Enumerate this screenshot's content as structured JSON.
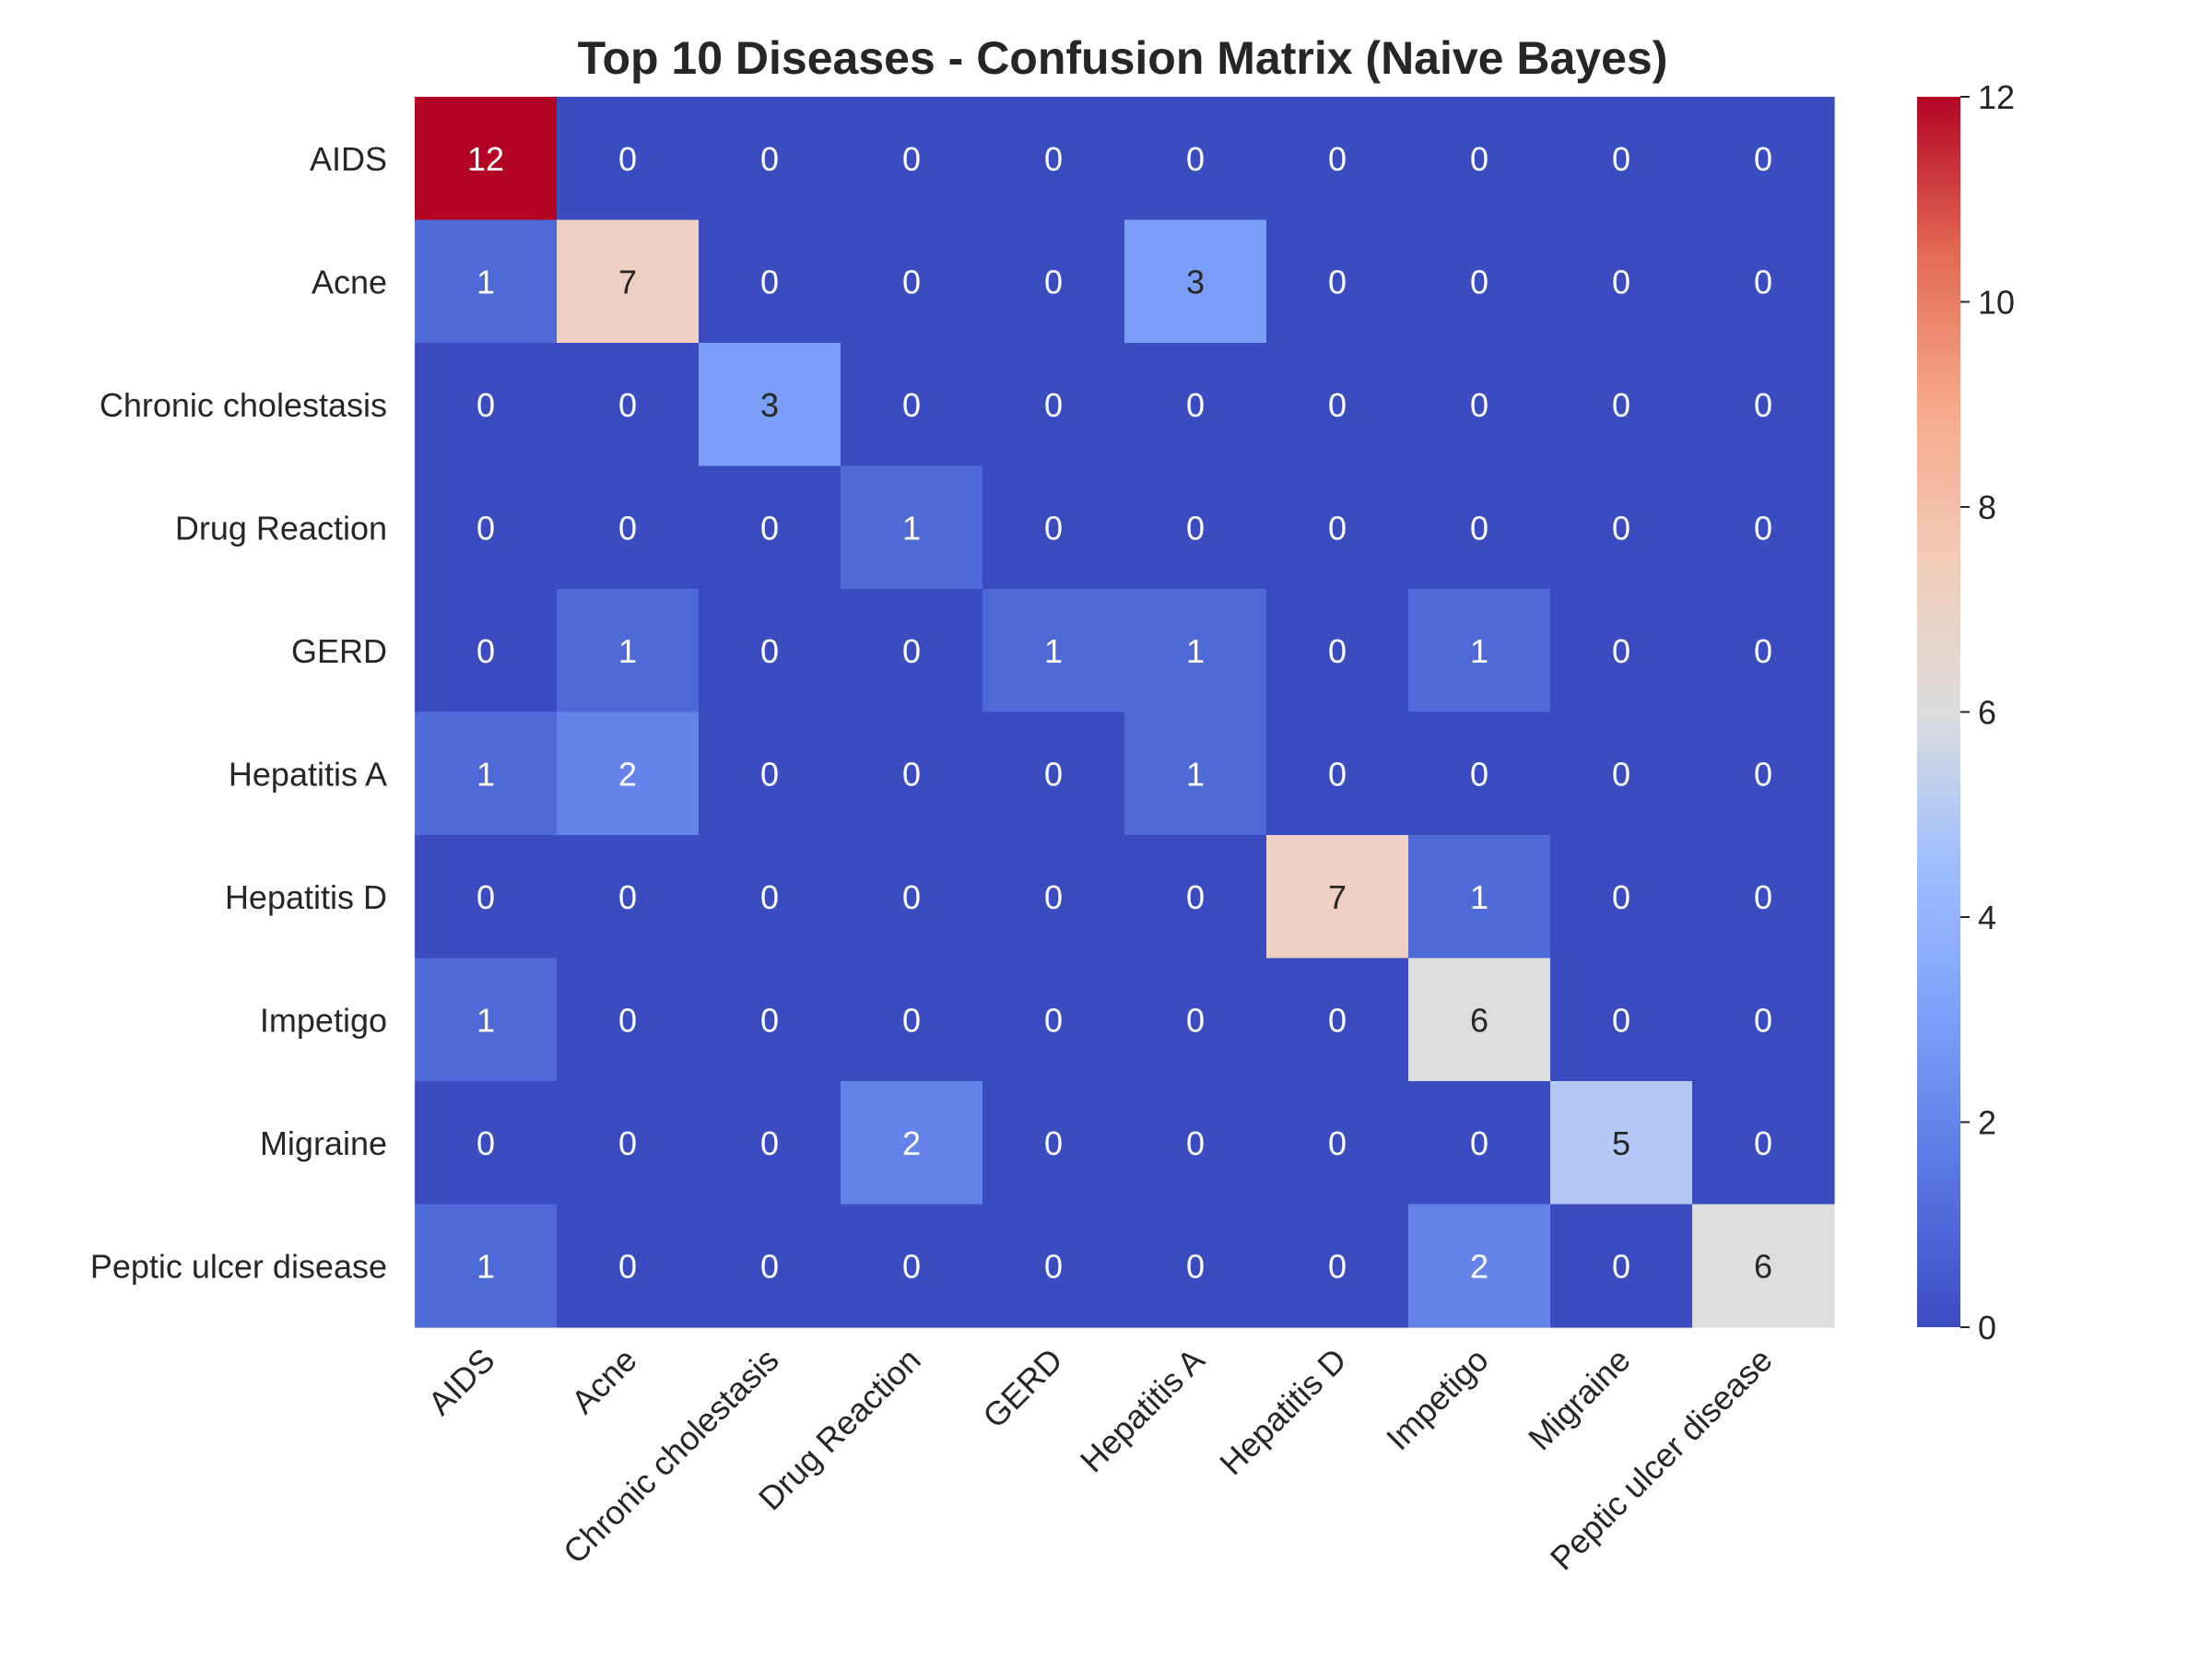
{
  "chart_data": {
    "type": "heatmap",
    "title": "Top 10 Diseases - Confusion Matrix (Naive Bayes)",
    "xlabel": "",
    "ylabel": "",
    "rows": [
      "AIDS",
      "Acne",
      "Chronic cholestasis",
      "Drug Reaction",
      "GERD",
      "Hepatitis A",
      "Hepatitis D",
      "Impetigo",
      "Migraine",
      "Peptic ulcer disease"
    ],
    "columns": [
      "AIDS",
      "Acne",
      "Chronic cholestasis",
      "Drug Reaction",
      "GERD",
      "Hepatitis A",
      "Hepatitis D",
      "Impetigo",
      "Migraine",
      "Peptic ulcer disease"
    ],
    "values": [
      [
        12,
        0,
        0,
        0,
        0,
        0,
        0,
        0,
        0,
        0
      ],
      [
        1,
        7,
        0,
        0,
        0,
        3,
        0,
        0,
        0,
        0
      ],
      [
        0,
        0,
        3,
        0,
        0,
        0,
        0,
        0,
        0,
        0
      ],
      [
        0,
        0,
        0,
        1,
        0,
        0,
        0,
        0,
        0,
        0
      ],
      [
        0,
        1,
        0,
        0,
        1,
        1,
        0,
        1,
        0,
        0
      ],
      [
        1,
        2,
        0,
        0,
        0,
        1,
        0,
        0,
        0,
        0
      ],
      [
        0,
        0,
        0,
        0,
        0,
        0,
        7,
        1,
        0,
        0
      ],
      [
        1,
        0,
        0,
        0,
        0,
        0,
        0,
        6,
        0,
        0
      ],
      [
        0,
        0,
        0,
        2,
        0,
        0,
        0,
        0,
        5,
        0
      ],
      [
        1,
        0,
        0,
        0,
        0,
        0,
        0,
        2,
        0,
        6
      ]
    ],
    "colormap": "coolwarm",
    "vmin": 0,
    "vmax": 12,
    "colorbar_ticks": [
      "0",
      "2",
      "4",
      "6",
      "8",
      "10",
      "12"
    ],
    "annotations": true,
    "grid": false,
    "legend": "colorbar-right"
  }
}
